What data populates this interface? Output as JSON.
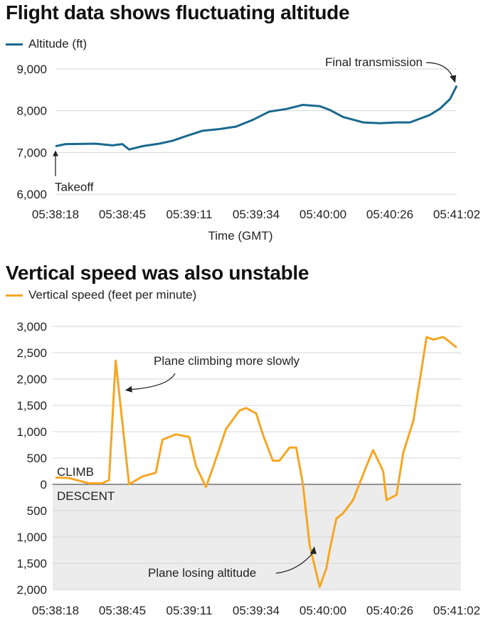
{
  "colors": {
    "altitude": "#19698e",
    "vertical_speed": "#f5a623",
    "grid": "#d6d6d6",
    "descent_band": "#ececec"
  },
  "chart_data": [
    {
      "type": "line",
      "title": "Flight data shows fluctuating altitude",
      "xlabel": "Time (GMT)",
      "ylabel": "",
      "ylim": [
        6000,
        9000
      ],
      "yticks": [
        6000,
        7000,
        8000,
        9000
      ],
      "ytick_labels": [
        "6,000",
        "7,000",
        "8,000",
        "9,000"
      ],
      "xlim": [
        0,
        6
      ],
      "xtick_positions": [
        0,
        1,
        2,
        3,
        4,
        5,
        6
      ],
      "xtick_labels": [
        "05:38:18",
        "05:38:45",
        "05:39:11",
        "05:39:34",
        "05:40:00",
        "05:40:26",
        "05:41:02"
      ],
      "grid": true,
      "legend": "top-left",
      "series": [
        {
          "name": "Altitude (ft)",
          "x": [
            0.0,
            0.15,
            0.6,
            0.85,
            1.0,
            1.1,
            1.3,
            1.55,
            1.75,
            1.95,
            2.2,
            2.45,
            2.7,
            2.95,
            3.2,
            3.45,
            3.7,
            3.95,
            4.1,
            4.3,
            4.6,
            4.85,
            5.1,
            5.3,
            5.6,
            5.75,
            5.9,
            6.0
          ],
          "y": [
            7150,
            7200,
            7210,
            7170,
            7200,
            7070,
            7150,
            7210,
            7280,
            7390,
            7520,
            7560,
            7620,
            7780,
            7980,
            8040,
            8140,
            8110,
            8020,
            7850,
            7720,
            7700,
            7720,
            7720,
            7900,
            8050,
            8280,
            8600
          ]
        }
      ],
      "annotations": [
        {
          "text": "Takeoff",
          "x": 0.0,
          "y": 7150
        },
        {
          "text": "Final transmission",
          "x": 6.0,
          "y": 8600
        }
      ]
    },
    {
      "type": "line",
      "title": "Vertical speed was also unstable",
      "xlabel": "",
      "ylabel": "",
      "ylim": [
        -2000,
        3000
      ],
      "yticks": [
        3000,
        2500,
        2000,
        1500,
        1000,
        500,
        0,
        -500,
        -1000,
        -1500,
        -2000
      ],
      "ytick_labels": [
        "3,000",
        "2,500",
        "2,000",
        "1,500",
        "1,000",
        "500",
        "0",
        "500",
        "1,000",
        "1,500",
        "2,000"
      ],
      "xlim": [
        0,
        6
      ],
      "xtick_positions": [
        0,
        1,
        2,
        3,
        4,
        5,
        6
      ],
      "xtick_labels": [
        "05:38:18",
        "05:38:45",
        "05:39:11",
        "05:39:34",
        "05:40:00",
        "05:40:26",
        "05:41:02"
      ],
      "grid": true,
      "legend": "top-left",
      "region_labels": {
        "above": "CLIMB",
        "below": "DESCENT"
      },
      "series": [
        {
          "name": "Vertical speed (feet per minute)",
          "x": [
            0.0,
            0.2,
            0.5,
            0.7,
            0.8,
            0.9,
            1.1,
            1.3,
            1.5,
            1.6,
            1.8,
            2.0,
            2.1,
            2.25,
            2.35,
            2.55,
            2.75,
            2.85,
            3.0,
            3.1,
            3.25,
            3.35,
            3.5,
            3.6,
            3.7,
            3.8,
            3.95,
            4.05,
            4.1,
            4.2,
            4.3,
            4.45,
            4.65,
            4.75,
            4.9,
            4.95,
            5.1,
            5.2,
            5.35,
            5.55,
            5.65,
            5.8,
            5.95,
            6.0
          ],
          "y": [
            130,
            120,
            20,
            20,
            80,
            2350,
            0,
            150,
            220,
            850,
            950,
            900,
            350,
            -50,
            300,
            1050,
            1400,
            1450,
            1350,
            950,
            450,
            450,
            700,
            700,
            0,
            -1150,
            -1950,
            -1600,
            -1250,
            -650,
            -550,
            -300,
            350,
            650,
            250,
            -300,
            -200,
            600,
            1200,
            2800,
            2750,
            2800,
            2650,
            2600
          ]
        }
      ],
      "annotations": [
        {
          "text": "Plane climbing more slowly",
          "x": 1.0,
          "y": 1750
        },
        {
          "text": "Plane losing altitude",
          "x": 3.9,
          "y": -1150
        }
      ]
    }
  ]
}
